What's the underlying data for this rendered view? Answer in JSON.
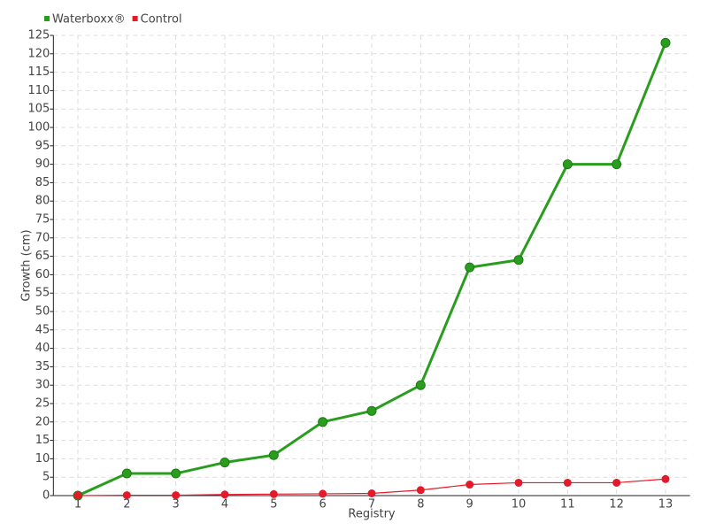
{
  "chart_data": {
    "type": "line",
    "categories": [
      "1",
      "2",
      "3",
      "4",
      "5",
      "6",
      "7",
      "8",
      "9",
      "10",
      "11",
      "12",
      "13"
    ],
    "series": [
      {
        "name": "Waterboxx®",
        "color": "#2a9d1e",
        "values": [
          0,
          6,
          6,
          9,
          11,
          20,
          23,
          30,
          62,
          64,
          90,
          90,
          123
        ]
      },
      {
        "name": "Control",
        "color": "#e41a2a",
        "values": [
          0,
          0.1,
          0.1,
          0.3,
          0.4,
          0.5,
          0.6,
          1.5,
          3,
          3.5,
          3.5,
          3.5,
          4.5
        ]
      }
    ],
    "x_label": "Registry",
    "y_label": "Growth (cm)",
    "ylim": [
      0,
      125
    ],
    "yticks": [
      0,
      5,
      10,
      15,
      20,
      25,
      30,
      35,
      40,
      45,
      50,
      55,
      60,
      65,
      70,
      75,
      80,
      85,
      90,
      95,
      100,
      105,
      110,
      115,
      120,
      125
    ],
    "grid": true,
    "legend": "top-left"
  }
}
